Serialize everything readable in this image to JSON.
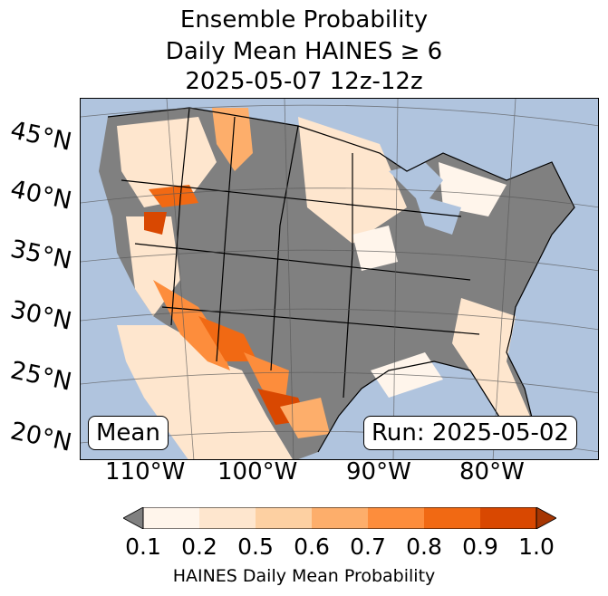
{
  "title": {
    "line1": "Ensemble Probability",
    "line2": "Daily Mean HAINES ≥ 6",
    "line3": "2025-05-07 12z-12z"
  },
  "map": {
    "lat_labels": [
      "45°N",
      "40°N",
      "35°N",
      "30°N",
      "25°N",
      "20°N"
    ],
    "lon_labels": [
      "110°W",
      "100°W",
      "90°W",
      "80°W"
    ],
    "stat_label": "Mean",
    "run_label": "Run: 2025-05-02",
    "colors": {
      "ocean": "#b0c4de",
      "below_threshold": "#808080",
      "p01_02": "#fff5eb",
      "p02_05": "#fee6ce",
      "p05_06": "#fdd0a2",
      "p06_07": "#fdae6b",
      "p07_08": "#fd8d3c",
      "p08_09": "#f16913",
      "p09_10": "#d94801",
      "over": "#a63603"
    }
  },
  "colorbar": {
    "ticks": [
      "0.1",
      "0.2",
      "0.5",
      "0.6",
      "0.7",
      "0.8",
      "0.9",
      "1.0"
    ],
    "colors": [
      "#fff5eb",
      "#fee6ce",
      "#fdd0a2",
      "#fdae6b",
      "#fd8d3c",
      "#f16913",
      "#d94801"
    ],
    "under_color": "#808080",
    "over_color": "#a63603",
    "label": "HAINES Daily Mean Probability"
  }
}
